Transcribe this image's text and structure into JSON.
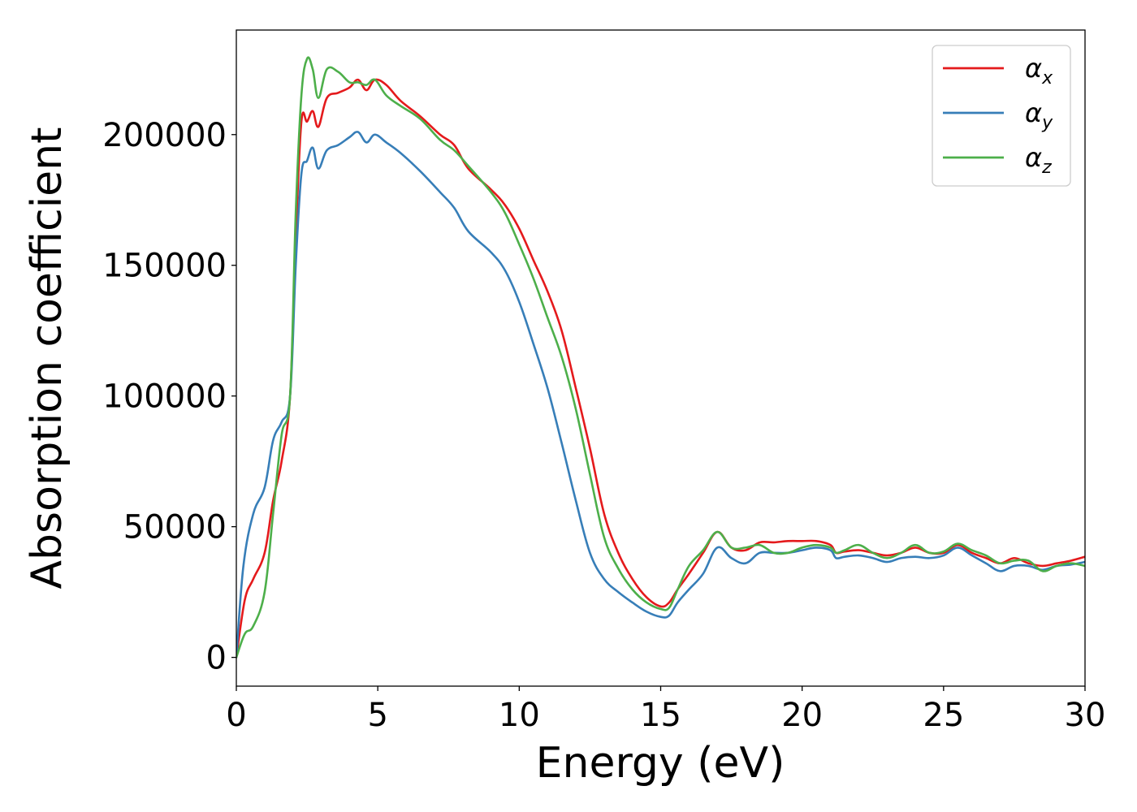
{
  "chart_data": {
    "type": "line",
    "title": "",
    "xlabel": "Energy (eV)",
    "ylabel": "Absorption coefficient",
    "xlim": [
      0,
      30
    ],
    "ylim": [
      -11000,
      240000
    ],
    "xticks": [
      0,
      5,
      10,
      15,
      20,
      25,
      30
    ],
    "yticks": [
      0,
      50000,
      100000,
      150000,
      200000
    ],
    "grid": false,
    "legend_position": "top-right",
    "series": [
      {
        "name": "αx",
        "symbol": "α",
        "subscript": "x",
        "color": "#e41a1c",
        "x": [
          0,
          0.3,
          0.6,
          1.0,
          1.3,
          1.6,
          1.9,
          2.1,
          2.3,
          2.5,
          2.7,
          2.9,
          3.2,
          3.6,
          4.0,
          4.3,
          4.6,
          4.9,
          5.3,
          5.8,
          6.5,
          7.2,
          7.7,
          8.2,
          9.0,
          9.5,
          10.0,
          10.5,
          11.0,
          11.5,
          12.0,
          12.5,
          13.0,
          13.5,
          14.0,
          14.5,
          15.0,
          15.3,
          15.6,
          16.0,
          16.5,
          17.0,
          17.5,
          18.0,
          18.5,
          19.0,
          19.5,
          20.0,
          20.5,
          21.0,
          21.2,
          21.5,
          22.0,
          22.5,
          23.0,
          23.5,
          24.0,
          24.5,
          25.0,
          25.5,
          26.0,
          26.5,
          27.0,
          27.5,
          28.0,
          28.5,
          29.0,
          29.5,
          30.0
        ],
        "values": [
          0,
          22000,
          30000,
          40000,
          60000,
          75000,
          100000,
          160000,
          205000,
          205000,
          209000,
          203000,
          214000,
          216000,
          218000,
          221000,
          217000,
          221000,
          219000,
          213000,
          207000,
          200000,
          196000,
          187000,
          179000,
          173000,
          164000,
          152000,
          140000,
          125000,
          103000,
          80000,
          55000,
          40000,
          30000,
          23000,
          19500,
          21000,
          26000,
          32000,
          40000,
          48000,
          42000,
          41000,
          44000,
          44000,
          44500,
          44500,
          44500,
          43000,
          40000,
          40500,
          41000,
          40000,
          39000,
          40000,
          42000,
          40000,
          40000,
          43000,
          40000,
          38000,
          36000,
          38000,
          36000,
          35000,
          36000,
          37000,
          38500
        ]
      },
      {
        "name": "αy",
        "symbol": "α",
        "subscript": "y",
        "color": "#377eb8",
        "x": [
          0,
          0.25,
          0.6,
          1.0,
          1.3,
          1.6,
          1.9,
          2.1,
          2.3,
          2.5,
          2.7,
          2.9,
          3.2,
          3.6,
          4.0,
          4.3,
          4.6,
          4.9,
          5.3,
          5.8,
          6.5,
          7.2,
          7.7,
          8.2,
          9.0,
          9.5,
          10.0,
          10.5,
          11.0,
          11.5,
          12.0,
          12.5,
          13.0,
          13.5,
          14.0,
          14.5,
          15.0,
          15.3,
          15.6,
          16.0,
          16.5,
          17.0,
          17.5,
          18.0,
          18.5,
          19.0,
          19.5,
          20.0,
          20.5,
          21.0,
          21.2,
          21.5,
          22.0,
          22.5,
          23.0,
          23.5,
          24.0,
          24.5,
          25.0,
          25.5,
          26.0,
          26.5,
          27.0,
          27.5,
          28.0,
          28.5,
          29.0,
          29.5,
          30.0
        ],
        "values": [
          0,
          35000,
          55000,
          65000,
          83000,
          90000,
          100000,
          150000,
          185000,
          190000,
          195000,
          187000,
          194000,
          196000,
          199000,
          201000,
          197000,
          200000,
          197000,
          193000,
          186000,
          178000,
          172000,
          163000,
          155000,
          148000,
          136000,
          120000,
          103000,
          82000,
          60000,
          40000,
          30000,
          25000,
          21000,
          17500,
          15500,
          16000,
          21000,
          26000,
          32000,
          42000,
          38000,
          36000,
          40000,
          40000,
          40000,
          41000,
          42000,
          41000,
          38000,
          38500,
          39000,
          38000,
          36500,
          38000,
          38500,
          38000,
          39000,
          42000,
          39000,
          36000,
          33000,
          35000,
          35000,
          33500,
          35000,
          35500,
          36500
        ]
      },
      {
        "name": "αz",
        "symbol": "α",
        "subscript": "z",
        "color": "#4daf4a",
        "x": [
          0,
          0.3,
          0.6,
          1.0,
          1.3,
          1.6,
          1.9,
          2.1,
          2.3,
          2.5,
          2.7,
          2.9,
          3.2,
          3.6,
          4.0,
          4.3,
          4.6,
          4.9,
          5.3,
          5.8,
          6.5,
          7.2,
          7.7,
          8.2,
          9.0,
          9.5,
          10.0,
          10.5,
          11.0,
          11.5,
          12.0,
          12.5,
          13.0,
          13.5,
          14.0,
          14.5,
          15.0,
          15.3,
          15.6,
          16.0,
          16.5,
          17.0,
          17.5,
          18.0,
          18.5,
          19.0,
          19.5,
          20.0,
          20.5,
          21.0,
          21.2,
          21.5,
          22.0,
          22.5,
          23.0,
          23.5,
          24.0,
          24.5,
          25.0,
          25.5,
          26.0,
          26.5,
          27.0,
          27.5,
          28.0,
          28.5,
          29.0,
          29.5,
          30.0
        ],
        "values": [
          0,
          9000,
          12000,
          25000,
          55000,
          85000,
          100000,
          170000,
          215000,
          229000,
          225000,
          214000,
          225000,
          224000,
          220000,
          220000,
          219000,
          221000,
          215000,
          211000,
          206000,
          198000,
          194000,
          188000,
          178000,
          170000,
          158000,
          145000,
          130000,
          115000,
          95000,
          70000,
          46000,
          34000,
          26000,
          21000,
          18500,
          19000,
          26000,
          35000,
          41000,
          48000,
          42000,
          42000,
          43000,
          40000,
          40000,
          42000,
          43000,
          42000,
          40000,
          41000,
          43000,
          40000,
          38000,
          40000,
          43000,
          40000,
          40500,
          43500,
          41000,
          39000,
          36000,
          37000,
          37000,
          33000,
          35000,
          36000,
          35000
        ]
      }
    ]
  }
}
